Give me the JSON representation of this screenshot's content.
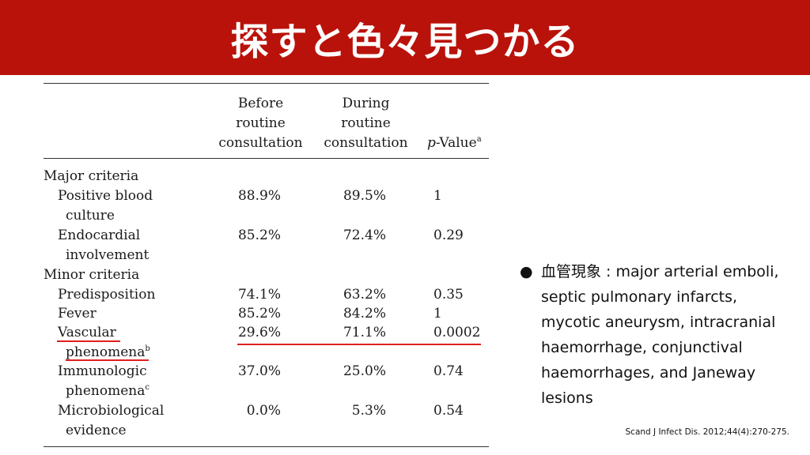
{
  "title": "探すと色々見つかる",
  "table": {
    "headers": {
      "before": [
        "Before",
        "routine",
        "consultation"
      ],
      "during": [
        "During",
        "routine",
        "consultation"
      ],
      "p_italic": "p",
      "p_rest": "-Value",
      "p_sup": "a"
    },
    "major_criteria": "Major criteria",
    "minor_criteria": "Minor criteria",
    "rows": [
      {
        "label1": "Positive blood",
        "label2": "culture",
        "before": "88.9%",
        "during": "89.5%",
        "p": "1"
      },
      {
        "label1": "Endocardial",
        "label2": "involvement",
        "before": "85.2%",
        "during": "72.4%",
        "p": "0.29"
      },
      {
        "label1": "Predisposition",
        "before": "74.1%",
        "during": "63.2%",
        "p": "0.35"
      },
      {
        "label1": "Fever",
        "before": "85.2%",
        "during": "84.2%",
        "p": "1"
      },
      {
        "label1": "Vascular",
        "label2": "phenomena",
        "sup": "b",
        "before": "29.6%",
        "during": "71.1%",
        "p": "0.0002"
      },
      {
        "label1": "Immunologic",
        "label2": "phenomena",
        "sup": "c",
        "before": "37.0%",
        "during": "25.0%",
        "p": "0.74"
      },
      {
        "label1": "Microbiological",
        "label2": "evidence",
        "before": "0.0%",
        "during": "5.3%",
        "p": "0.54"
      }
    ]
  },
  "bullet": {
    "marker": "●",
    "text": "血管現象 : major arterial emboli, septic pulmonary infarcts, mycotic aneurysm, intracranial haemorrhage, conjunctival haemorrhages, and Janeway lesions"
  },
  "citation": "Scand J Infect Dis. 2012;44(4):270-275."
}
